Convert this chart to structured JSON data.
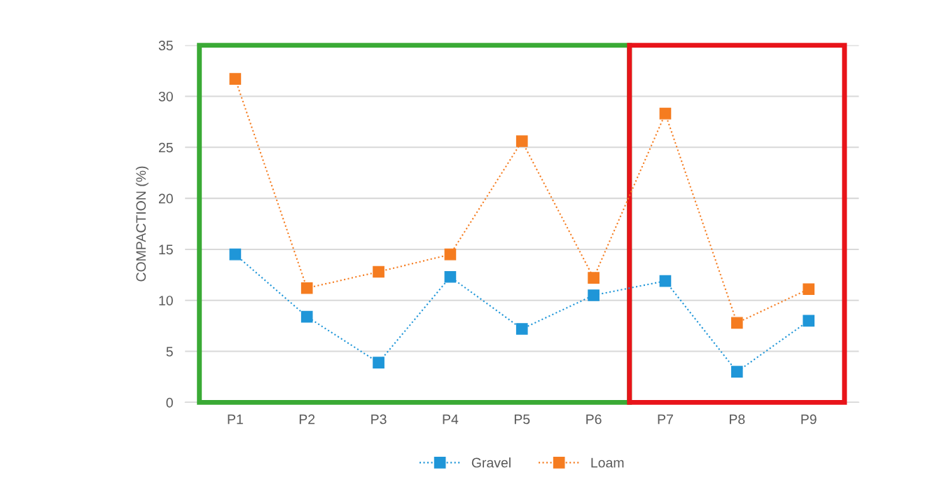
{
  "chart_data": {
    "type": "line",
    "ylabel": "COMPACTION (%)",
    "categories": [
      "P1",
      "P2",
      "P3",
      "P4",
      "P5",
      "P6",
      "P7",
      "P8",
      "P9"
    ],
    "series": [
      {
        "name": "Gravel",
        "color": "#1f96d8",
        "values": [
          14.5,
          8.4,
          3.9,
          12.3,
          7.2,
          10.5,
          11.9,
          3.0,
          8.0
        ]
      },
      {
        "name": "Loam",
        "color": "#f57c20",
        "values": [
          31.7,
          11.2,
          12.8,
          14.5,
          25.6,
          12.2,
          28.3,
          7.8,
          11.1
        ]
      }
    ],
    "ylim": [
      0,
      35
    ],
    "yticks": [
      0,
      5,
      10,
      15,
      20,
      25,
      30,
      35
    ],
    "grid": "y",
    "legend": "bottom",
    "marker": "square",
    "line_style": "dotted"
  }
}
